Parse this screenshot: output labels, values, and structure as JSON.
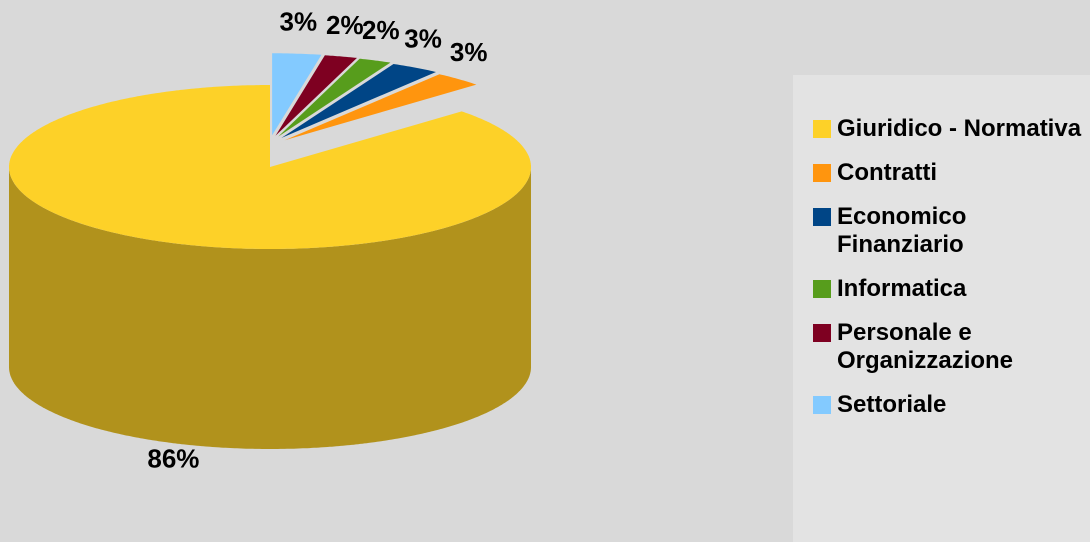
{
  "chart_data": {
    "type": "pie3d",
    "categories": [
      "Giuridico - Normativa",
      "Contratti",
      "Economico Finanziario",
      "Informatica",
      "Personale e Organizzazione",
      "Settoriale"
    ],
    "values": [
      86,
      3,
      3,
      2,
      2,
      3
    ],
    "value_labels": [
      "86%",
      "3%",
      "3%",
      "2%",
      "2%",
      "3%"
    ],
    "colors": [
      "#fdd128",
      "#ff950e",
      "#004586",
      "#579d1c",
      "#7e0021",
      "#83caff"
    ],
    "legend": "right"
  }
}
